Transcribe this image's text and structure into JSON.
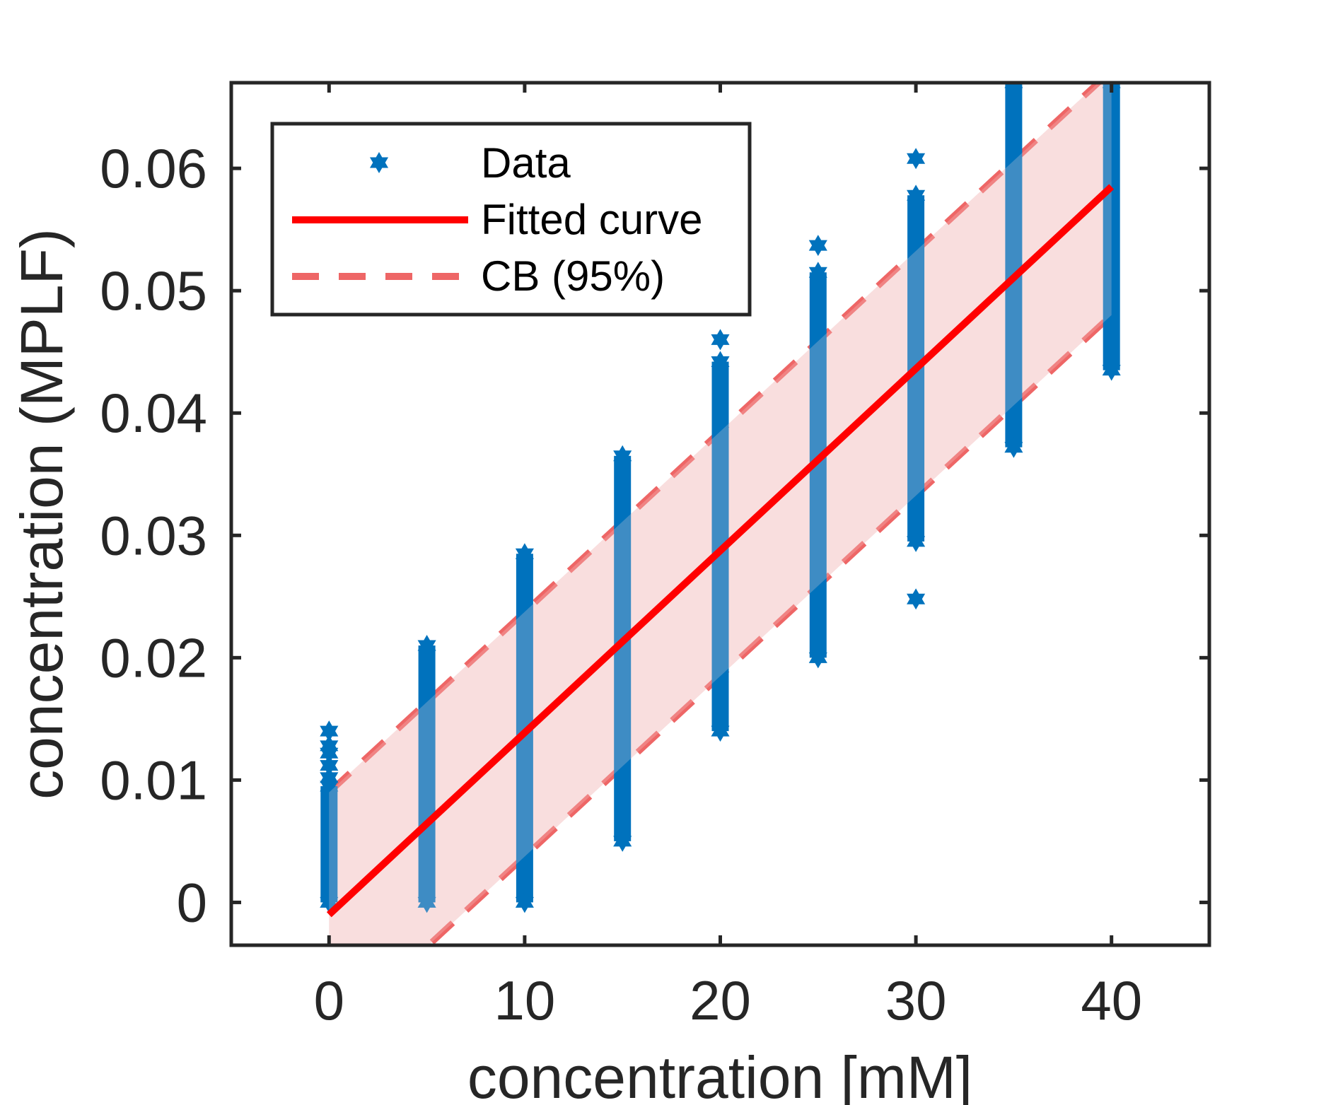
{
  "chart_data": {
    "type": "scatter",
    "title": "",
    "xlabel": "concentration [mM]",
    "ylabel": "concentration (MPLF)",
    "xlim": [
      -5,
      45
    ],
    "ylim": [
      -0.0035,
      0.067
    ],
    "x_ticks": [
      "0",
      "10",
      "20",
      "30",
      "40"
    ],
    "x_tick_values": [
      0,
      10,
      20,
      30,
      40
    ],
    "y_ticks": [
      "0",
      "0.01",
      "0.02",
      "0.03",
      "0.04",
      "0.05",
      "0.06"
    ],
    "y_tick_values": [
      0,
      0.01,
      0.02,
      0.03,
      0.04,
      0.05,
      0.06
    ],
    "grid": false,
    "legend_position": "top-left",
    "legend": [
      {
        "label": "Data",
        "marker": "star",
        "color": "#0072BD"
      },
      {
        "label": "Fitted curve",
        "line": "solid",
        "color": "#FF0000"
      },
      {
        "label": "CB (95%)",
        "line": "dashed",
        "color": "#EE6666"
      }
    ],
    "data_columns": [
      {
        "x": 0,
        "min": 0.0,
        "max": 0.0095,
        "outliers": [
          0.0102,
          0.0112,
          0.0122,
          0.0128,
          0.014
        ]
      },
      {
        "x": 5,
        "min": 0.0,
        "max": 0.021,
        "outliers": []
      },
      {
        "x": 10,
        "min": 0.0,
        "max": 0.0285,
        "outliers": []
      },
      {
        "x": 15,
        "min": 0.005,
        "max": 0.0365,
        "outliers": []
      },
      {
        "x": 20,
        "min": 0.014,
        "max": 0.0442,
        "outliers": [
          0.046
        ]
      },
      {
        "x": 25,
        "min": 0.02,
        "max": 0.0515,
        "outliers": [
          0.0537
        ]
      },
      {
        "x": 30,
        "min": 0.0295,
        "max": 0.0578,
        "outliers": [
          0.0608,
          0.0248
        ]
      },
      {
        "x": 35,
        "min": 0.0372,
        "max": 0.067,
        "outliers": []
      },
      {
        "x": 40,
        "min": 0.0435,
        "max": 0.067,
        "outliers": []
      }
    ],
    "fitted_curve": {
      "x": [
        0,
        40
      ],
      "y": [
        -0.001,
        0.0585
      ]
    },
    "confidence_band": {
      "x": [
        0,
        40
      ],
      "upper": [
        0.009,
        0.068
      ],
      "lower": [
        -0.011,
        0.048
      ]
    },
    "colors": {
      "data": "#0072BD",
      "fit": "#FF0000",
      "band_fill": "#F9DCDC",
      "band_line": "#EE6666",
      "axes": "#262626"
    }
  }
}
